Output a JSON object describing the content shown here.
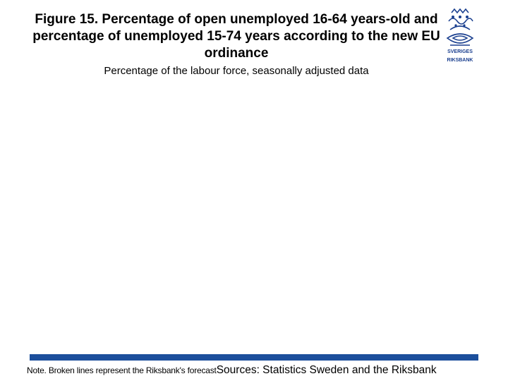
{
  "header": {
    "title": "Figure 15. Percentage of open unemployed 16-64 years-old and percentage of unemployed 15-74 years according to the new EU ordinance",
    "subtitle": "Percentage of the labour force, seasonally adjusted data"
  },
  "logo": {
    "lines": [
      "SVERIGES",
      "RIKSBANK"
    ]
  },
  "footer": {
    "note": "Note. Broken lines represent the Riksbank's forecast",
    "sources": "Sources: Statistics Sweden and the Riksbank"
  }
}
